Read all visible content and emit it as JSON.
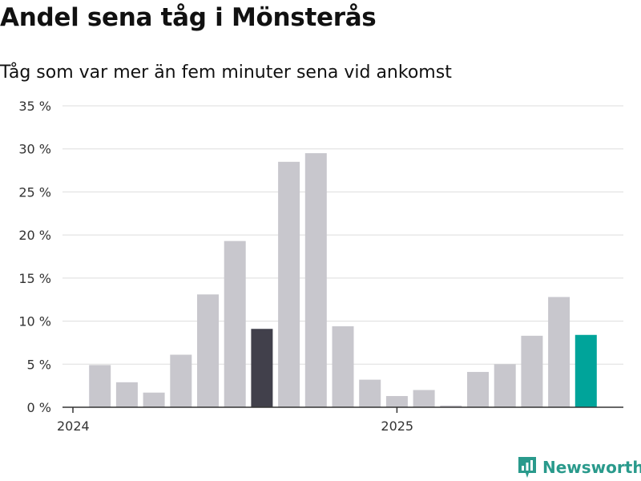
{
  "title": "Andel sena tåg i Mönsterås",
  "subtitle": "Tåg som var mer än fem minuter sena vid ankomst",
  "brand": {
    "name": "Newsworthy",
    "icon": "newsworthy-logo-icon",
    "color": "#2a9a8c"
  },
  "chart_data": {
    "type": "bar",
    "ylim": [
      0,
      35
    ],
    "y_ticks": [
      0,
      5,
      10,
      15,
      20,
      25,
      30,
      35
    ],
    "y_tick_labels": [
      "0 %",
      "5 %",
      "10 %",
      "15 %",
      "20 %",
      "25 %",
      "30 %",
      "35 %"
    ],
    "x_tick_labels": [
      {
        "label": "2024",
        "month_index": 0
      },
      {
        "label": "2025",
        "month_index": 12
      }
    ],
    "grid": true,
    "legend": "none",
    "months": [
      "2024-01",
      "2024-02",
      "2024-03",
      "2024-04",
      "2024-05",
      "2024-06",
      "2024-07",
      "2024-08",
      "2024-09",
      "2024-10",
      "2024-11",
      "2024-12",
      "2025-01",
      "2025-02",
      "2025-03",
      "2025-04",
      "2025-05",
      "2025-06",
      "2025-07",
      "2025-08"
    ],
    "values": [
      null,
      4.9,
      2.9,
      1.7,
      6.1,
      13.1,
      19.3,
      9.1,
      28.5,
      29.5,
      9.4,
      3.2,
      1.3,
      2.0,
      0.2,
      4.1,
      5.0,
      8.3,
      12.8,
      8.4
    ],
    "colors": {
      "default": "#c8c7cd",
      "highlight_previous_year": "#41404b",
      "highlight_latest": "#00a49a",
      "grid": "#dddddd",
      "axis": "#333333"
    },
    "highlight_previous_year_index": 7,
    "highlight_latest_index": 19
  }
}
